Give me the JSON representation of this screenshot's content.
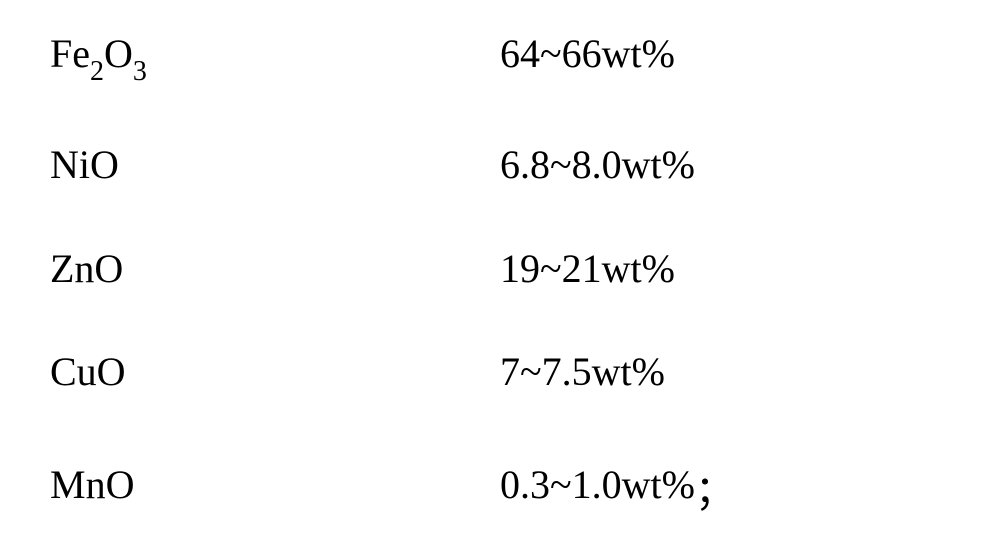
{
  "rows": [
    {
      "formula_parts": [
        {
          "text": "Fe",
          "sub": false
        },
        {
          "text": "2",
          "sub": true
        },
        {
          "text": "O",
          "sub": false
        },
        {
          "text": "3",
          "sub": true
        }
      ],
      "value": "64~66wt%",
      "trailing": ""
    },
    {
      "formula_parts": [
        {
          "text": "NiO",
          "sub": false
        }
      ],
      "value": "6.8~8.0wt%",
      "trailing": ""
    },
    {
      "formula_parts": [
        {
          "text": "ZnO",
          "sub": false
        }
      ],
      "value": "19~21wt%",
      "trailing": ""
    },
    {
      "formula_parts": [
        {
          "text": "CuO",
          "sub": false
        }
      ],
      "value": "7~7.5wt%",
      "trailing": ""
    },
    {
      "formula_parts": [
        {
          "text": "MnO",
          "sub": false
        }
      ],
      "value": "0.3~1.0wt%",
      "trailing": "；"
    }
  ],
  "style": {
    "font_family": "Times New Roman",
    "font_size_main": 40,
    "font_size_sub": 28,
    "text_color": "#000000",
    "background_color": "#ffffff"
  }
}
